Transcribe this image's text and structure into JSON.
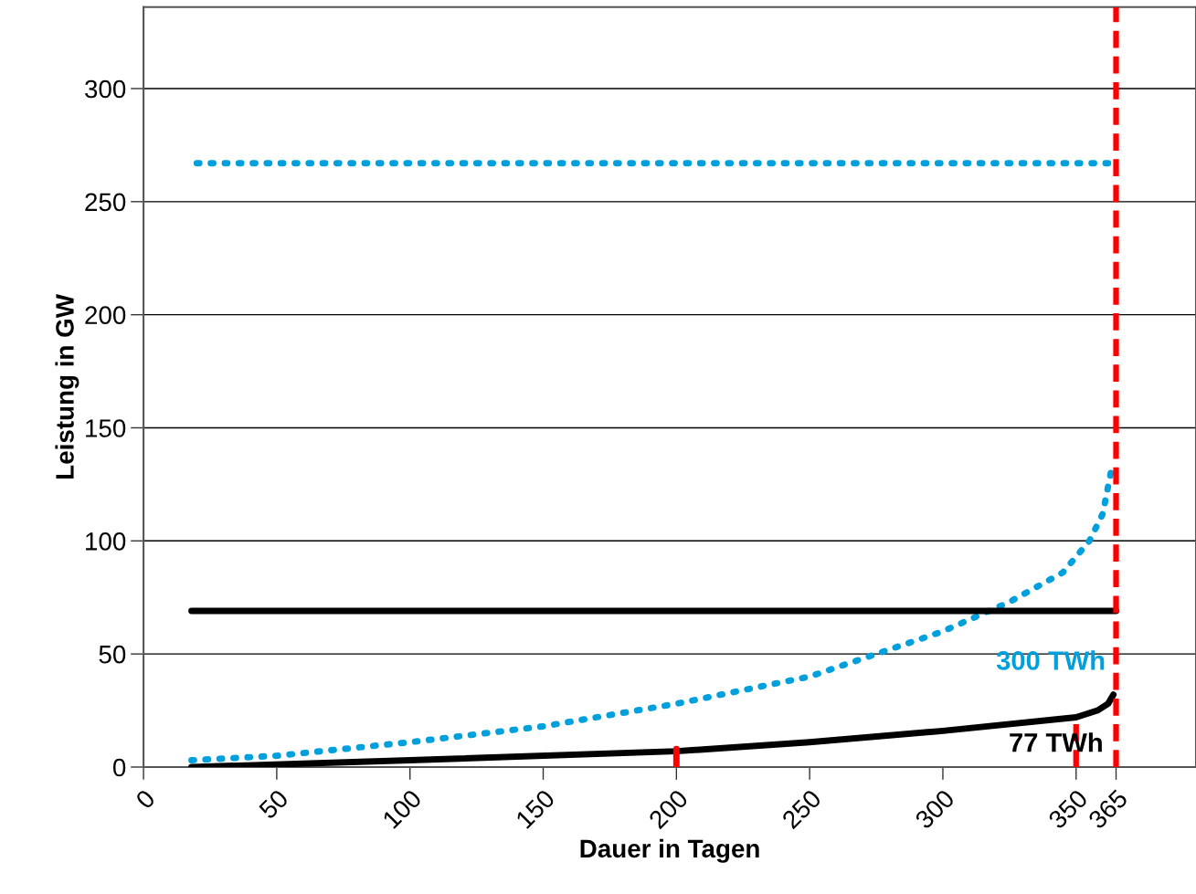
{
  "chart_data": {
    "type": "line",
    "xlabel": "Dauer in Tagen",
    "ylabel": "Leistung in GW",
    "xlim": [
      0,
      395
    ],
    "ylim": [
      0,
      336
    ],
    "xticks": [
      0,
      50,
      100,
      150,
      200,
      250,
      300,
      350,
      365
    ],
    "yticks": [
      0,
      50,
      100,
      150,
      200,
      250,
      300
    ],
    "grid": "y",
    "series": [
      {
        "color": "#00a0dc",
        "line_style": "dotted",
        "x": [
          18,
          50,
          100,
          150,
          200,
          250,
          275,
          300,
          325,
          345,
          355,
          360,
          363
        ],
        "values": [
          3,
          5,
          11,
          18,
          28,
          40,
          50,
          60,
          73,
          86,
          100,
          112,
          130
        ]
      },
      {
        "color": "#00a0dc",
        "line_style": "dotted",
        "x": [
          20,
          362
        ],
        "values": [
          267,
          267
        ]
      },
      {
        "color": "#000000",
        "line_style": "solid",
        "x": [
          18,
          100,
          200,
          250,
          300,
          350,
          358,
          362,
          364
        ],
        "values": [
          0,
          3,
          7,
          11,
          16,
          22,
          25,
          28,
          32
        ]
      },
      {
        "color": "#000000",
        "line_style": "solid",
        "x": [
          18,
          365
        ],
        "values": [
          69,
          69
        ]
      },
      {
        "color": "#ff0000",
        "line_style": "solid",
        "x": [
          200,
          200
        ],
        "values": [
          0,
          8
        ]
      },
      {
        "color": "#ff0000",
        "line_style": "dashed",
        "x": [
          350,
          350
        ],
        "values": [
          0,
          21
        ]
      }
    ],
    "ref_lines": [
      {
        "axis": "x",
        "value": 365,
        "color": "#ff0000",
        "line_style": "dashed"
      }
    ],
    "annotations": [
      "300 TWh",
      "77 TWh"
    ]
  }
}
